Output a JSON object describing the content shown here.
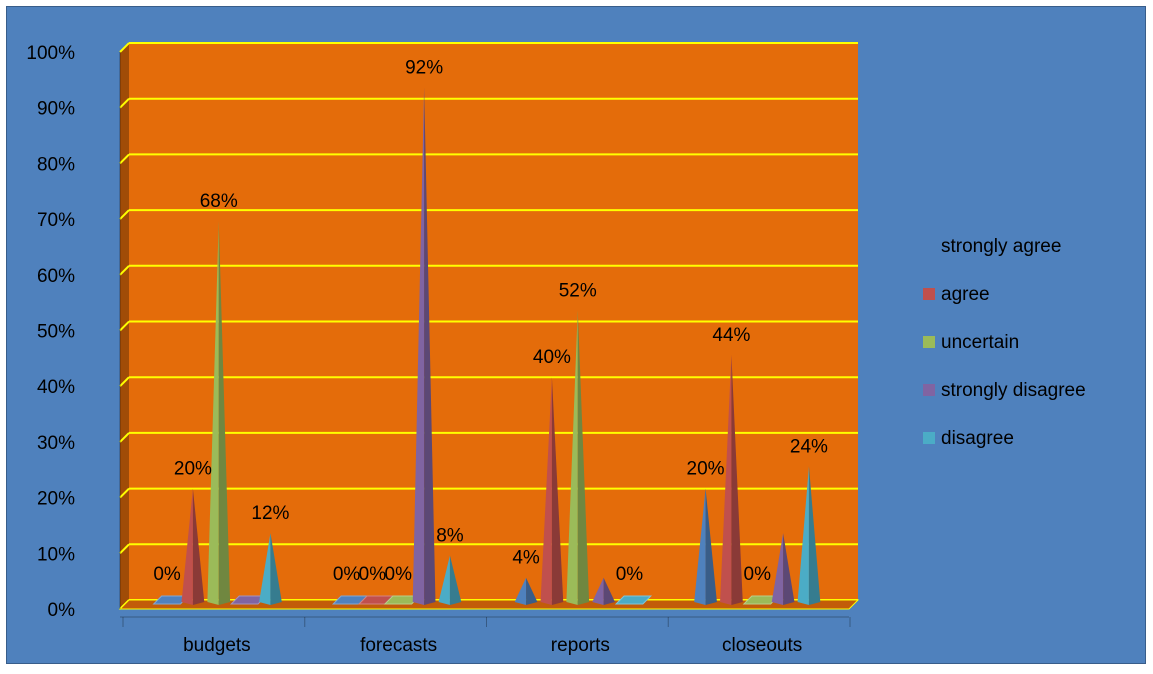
{
  "chart_data": {
    "type": "bar",
    "bar_shape": "pyramid-3d",
    "categories": [
      "budgets",
      "forecasts",
      "reports",
      "closeouts"
    ],
    "series": [
      {
        "name": "strongly agree",
        "color": "#4f81bd",
        "values": [
          0,
          0,
          4,
          20
        ],
        "labels": [
          "0%",
          "0%",
          "4%",
          "20%"
        ]
      },
      {
        "name": "agree",
        "color": "#c0504d",
        "values": [
          20,
          0,
          40,
          44
        ],
        "labels": [
          "20%",
          "0%",
          "40%",
          "44%"
        ]
      },
      {
        "name": "uncertain",
        "color": "#9bbb59",
        "values": [
          68,
          0,
          52,
          0
        ],
        "labels": [
          "68%",
          "0%",
          "52%",
          "0%"
        ]
      },
      {
        "name": "strongly disagree",
        "color": "#8064a2",
        "values": [
          0,
          92,
          4,
          12
        ],
        "labels": [
          "",
          "92%",
          "",
          ""
        ]
      },
      {
        "name": "disagree",
        "color": "#4bacc6",
        "values": [
          12,
          8,
          0,
          24
        ],
        "labels": [
          "12%",
          "8%",
          "0%",
          "24%"
        ]
      }
    ],
    "yticks": [
      "0%",
      "10%",
      "20%",
      "30%",
      "40%",
      "50%",
      "60%",
      "70%",
      "80%",
      "90%",
      "100%"
    ],
    "ylim": [
      0,
      100
    ],
    "grid": true,
    "legend_position": "right",
    "plot_background": "#e46c0a",
    "gridline_color": "#ffff00",
    "chart_background": "#4f81bd"
  }
}
